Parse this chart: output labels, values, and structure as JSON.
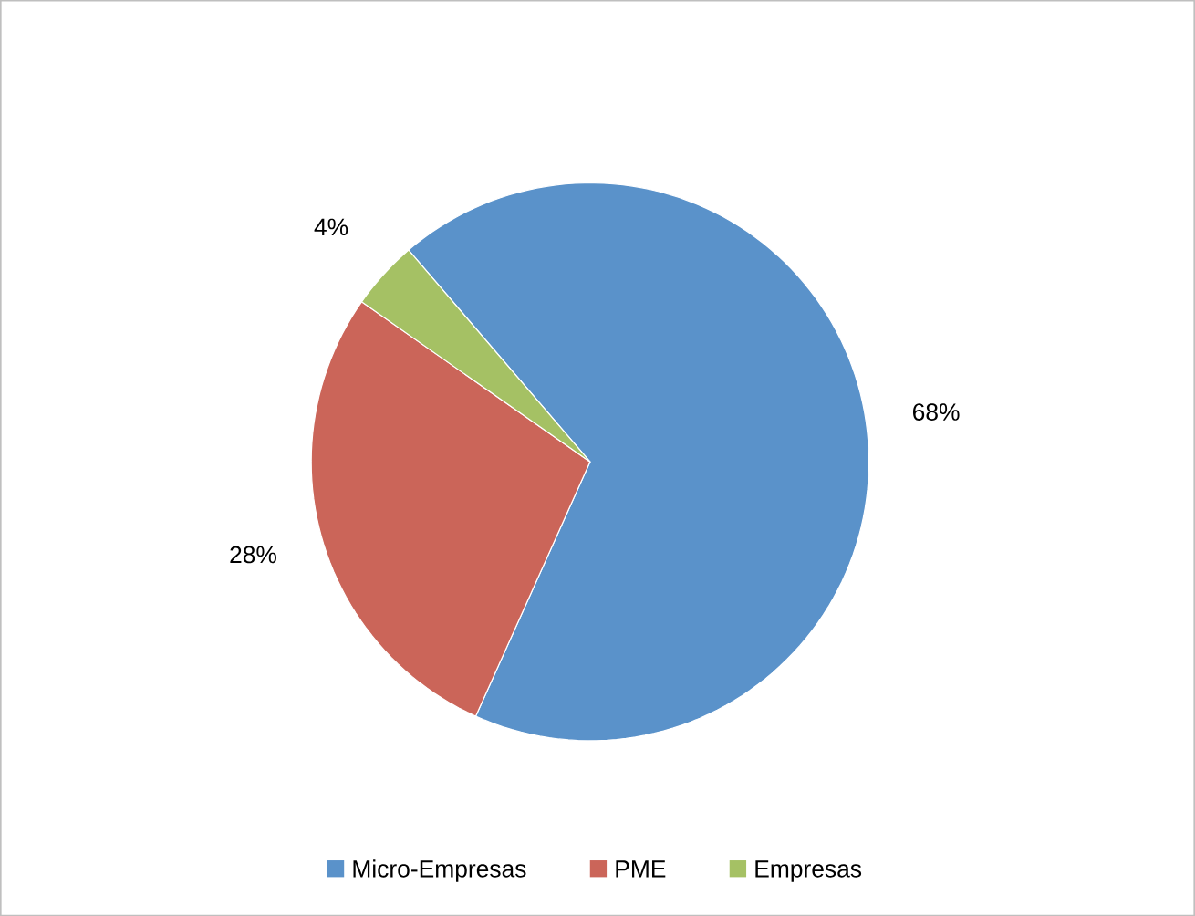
{
  "chart_data": {
    "type": "pie",
    "categories": [
      "Micro-Empresas",
      "PME",
      "Empresas"
    ],
    "values": [
      68,
      28,
      4
    ],
    "colors": [
      "#5a92ca",
      "#cb6559",
      "#a5c164"
    ],
    "value_labels": [
      "68%",
      "28%",
      "4%"
    ],
    "legend": "bottom"
  }
}
